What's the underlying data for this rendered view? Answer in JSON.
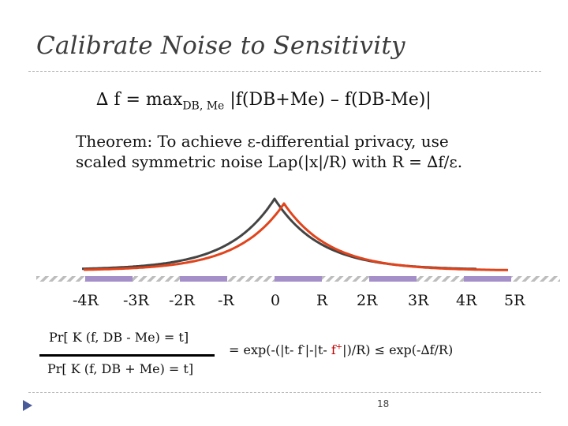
{
  "slide": {
    "title": "Calibrate Noise to Sensitivity",
    "formula": {
      "lhs": "∆ f = max",
      "subscript": "DB, Me",
      "rhs": " |f(DB+Me) – f(DB-Me)|"
    },
    "theorem": {
      "line1": "Theorem: To achieve ε-differential privacy, use",
      "line2": "scaled symmetric noise Lap(|x|/R) with R = ∆f/ε."
    },
    "axis_ticks": [
      "-4R",
      "-3R",
      "-2R",
      "-R",
      "0",
      "R",
      "2R",
      "3R",
      "4R",
      "5R"
    ],
    "probability": {
      "numerator": "Pr[ K (f, DB - Me) = t]",
      "denominator": "Pr[ K (f, DB + Me) = t]",
      "result_part1": "= exp(-(|t- f",
      "result_sup1": "-",
      "result_part2": "|-|t- ",
      "result_red": "f",
      "result_sup2": "+",
      "result_part3": "|)/R) ≤ exp(-∆f/R)"
    },
    "page_number": "18"
  },
  "colors": {
    "title": "#3d3d3d",
    "curve_gray": "#444444",
    "curve_orange": "#e0441c",
    "axis_purple": "#a48fc9",
    "axis_hatch": "#bdbdbd",
    "accent_red": "#c00000",
    "bullet_blue": "#4a5b9a"
  }
}
